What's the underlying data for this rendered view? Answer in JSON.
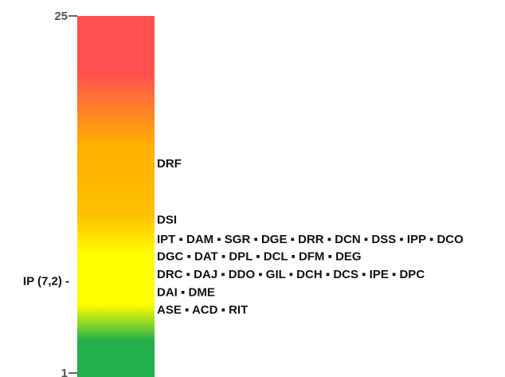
{
  "chart_data": {
    "type": "gradient-scale",
    "ylim": [
      1,
      25
    ],
    "y_ticks": [
      "25",
      "1"
    ],
    "colors": {
      "top": "#ff5050",
      "orange": "#ffb000",
      "yellow": "#ffff00",
      "green": "#22b04c"
    },
    "marker": {
      "text": "IP (7,2) -",
      "value": 7.2
    },
    "groups": [
      {
        "y": 15.1,
        "items": [
          "DRF"
        ]
      },
      {
        "y": 11.3,
        "items": [
          "DSI"
        ]
      },
      {
        "y": 10.0,
        "items": [
          "IPT",
          "DAM",
          "SGR",
          "DGE",
          "DRR",
          "DCN",
          "DSS",
          "IPP",
          "DCO"
        ]
      },
      {
        "y": 8.85,
        "items": [
          "DGC",
          "DAT",
          "DPL",
          "DCL",
          "DFM",
          "DEG"
        ]
      },
      {
        "y": 7.65,
        "items": [
          "DRC",
          "DAJ",
          "DDO",
          "GIL",
          "DCH",
          "DCS",
          "IPE",
          "DPC"
        ]
      },
      {
        "y": 6.45,
        "items": [
          "DAI",
          "DME"
        ]
      },
      {
        "y": 5.25,
        "items": [
          "ASE",
          "ACD",
          "RIT"
        ]
      }
    ]
  }
}
